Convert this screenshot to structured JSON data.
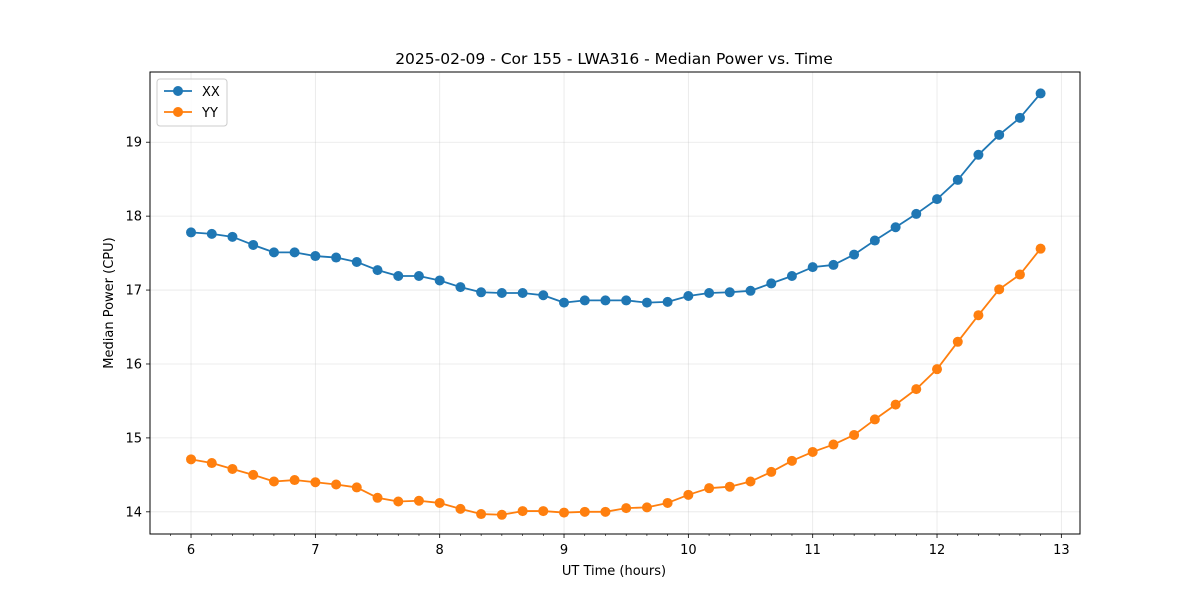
{
  "chart_data": {
    "type": "line",
    "title": "2025-02-09 - Cor 155 - LWA316 - Median Power vs. Time",
    "xlabel": "UT Time (hours)",
    "ylabel": "Median Power (CPU)",
    "xlim": [
      5.67,
      13.15
    ],
    "ylim": [
      13.7,
      19.95
    ],
    "xticks": [
      6,
      7,
      8,
      9,
      10,
      11,
      12,
      13
    ],
    "yticks": [
      14,
      15,
      16,
      17,
      18,
      19
    ],
    "xtick_labels": [
      "6",
      "7",
      "8",
      "9",
      "10",
      "11",
      "12",
      "13"
    ],
    "ytick_labels": [
      "14",
      "15",
      "16",
      "17",
      "18",
      "19"
    ],
    "grid": true,
    "legend_position": "top-left",
    "x": [
      6.0,
      6.167,
      6.333,
      6.5,
      6.667,
      6.833,
      7.0,
      7.167,
      7.333,
      7.5,
      7.667,
      7.833,
      8.0,
      8.167,
      8.333,
      8.5,
      8.667,
      8.833,
      9.0,
      9.167,
      9.333,
      9.5,
      9.667,
      9.833,
      10.0,
      10.167,
      10.333,
      10.5,
      10.667,
      10.833,
      11.0,
      11.167,
      11.333,
      11.5,
      11.667,
      11.833,
      12.0,
      12.167,
      12.333,
      12.5,
      12.667,
      12.833
    ],
    "series": [
      {
        "name": "XX",
        "color": "#1f77b4",
        "values": [
          17.78,
          17.76,
          17.72,
          17.61,
          17.51,
          17.51,
          17.46,
          17.44,
          17.38,
          17.27,
          17.19,
          17.19,
          17.13,
          17.04,
          16.97,
          16.96,
          16.96,
          16.93,
          16.83,
          16.86,
          16.86,
          16.86,
          16.83,
          16.84,
          16.92,
          16.96,
          16.97,
          16.99,
          17.09,
          17.19,
          17.31,
          17.34,
          17.48,
          17.67,
          17.85,
          18.03,
          18.23,
          18.49,
          18.83,
          19.1,
          19.33,
          19.66
        ]
      },
      {
        "name": "YY",
        "color": "#ff7f0e",
        "values": [
          14.71,
          14.66,
          14.58,
          14.5,
          14.41,
          14.43,
          14.4,
          14.37,
          14.33,
          14.19,
          14.14,
          14.15,
          14.12,
          14.04,
          13.97,
          13.96,
          14.01,
          14.01,
          13.99,
          14.0,
          14.0,
          14.05,
          14.06,
          14.12,
          14.23,
          14.32,
          14.34,
          14.41,
          14.54,
          14.69,
          14.81,
          14.91,
          15.04,
          15.25,
          15.45,
          15.66,
          15.93,
          16.3,
          16.66,
          17.01,
          17.21,
          17.56
        ]
      }
    ]
  }
}
